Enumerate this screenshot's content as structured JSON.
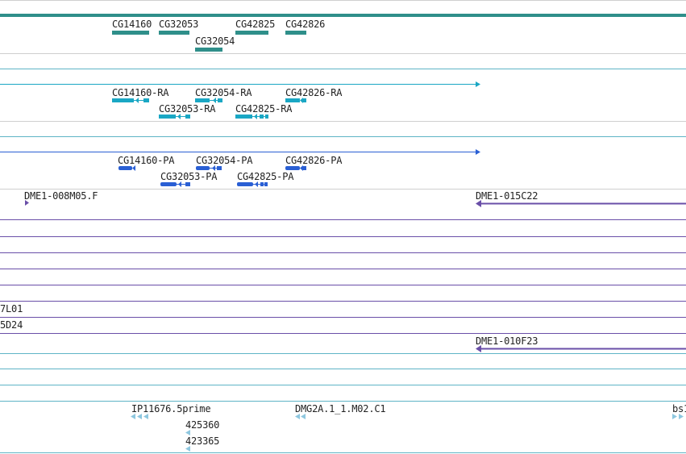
{
  "colors": {
    "gene": "#2f8f8a",
    "transcript_rna": "#1aa7c4",
    "transcript_protein": "#2a5fd4",
    "clone": "#6a4fa8",
    "est": "#8ec7df",
    "rule_gray": "#c8c8c8",
    "rule_purple": "#6a4fa8",
    "rule_teal": "#5fb4c6"
  },
  "genes": {
    "labels": [
      "CG14160",
      "CG32053",
      "CG42825",
      "CG42826",
      "CG32054"
    ]
  },
  "rna": {
    "labels": [
      "CG14160-RA",
      "CG32054-RA",
      "CG42826-RA",
      "CG32053-RA",
      "CG42825-RA"
    ]
  },
  "protein": {
    "labels": [
      "CG14160-PA",
      "CG32054-PA",
      "CG42826-PA",
      "CG32053-PA",
      "CG42825-PA"
    ]
  },
  "clones": {
    "labels": [
      "DME1-008M05.F",
      "DME1-015C22",
      "7L01",
      "5D24",
      "DME1-010F23"
    ]
  },
  "ests": {
    "labels": [
      "IP11676.5prime",
      "DMG2A.1_1.M02.C1",
      "bs1",
      "425360",
      "423365"
    ]
  }
}
